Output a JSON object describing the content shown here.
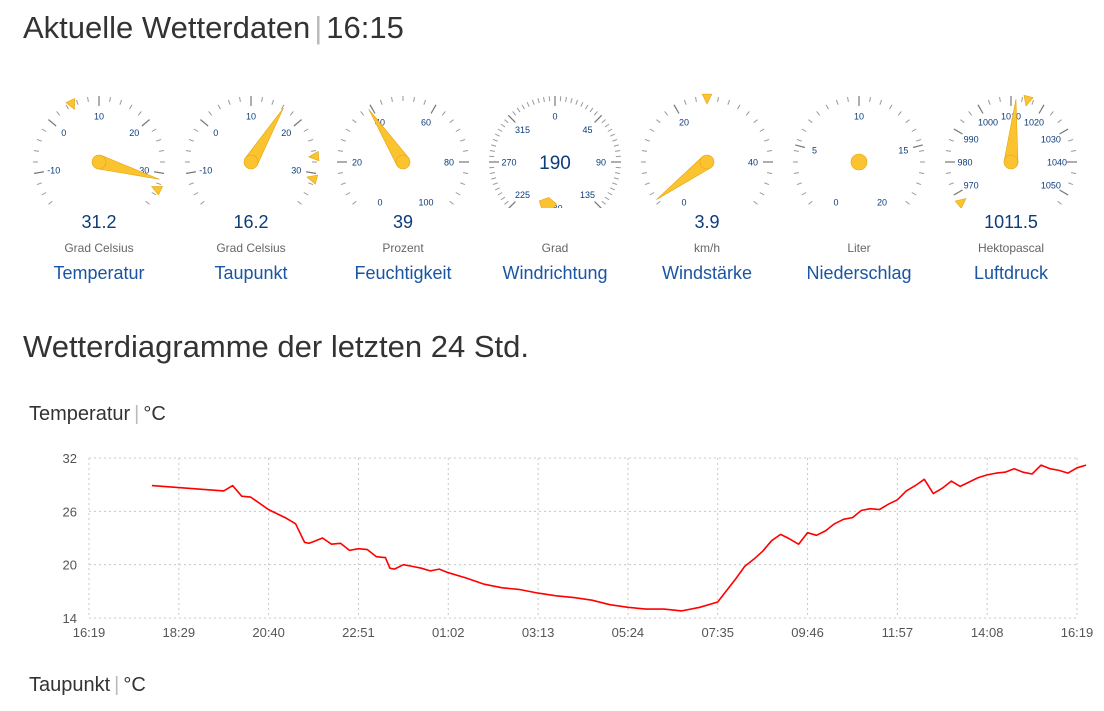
{
  "header": {
    "title": "Aktuelle Wetterdaten",
    "time": "16:15"
  },
  "colors": {
    "needle": "#fcc331",
    "needle_stroke": "#e2a40b",
    "value_text": "#0c3c7a",
    "link": "#1a55a3",
    "line": "#ff0000",
    "grid": "#c8c8c8"
  },
  "gauges": [
    {
      "id": "temperatur",
      "value": 31.2,
      "display": "31.2",
      "unit": "Grad Celsius",
      "label": "Temperatur",
      "min": -20,
      "max": 40,
      "labels": [
        "-10",
        "0",
        "10",
        "20",
        "30"
      ],
      "markers": [
        {
          "at": "low",
          "value": 5
        },
        {
          "at": "high",
          "value": 33
        }
      ]
    },
    {
      "id": "taupunkt",
      "value": 16.2,
      "display": "16.2",
      "unit": "Grad Celsius",
      "label": "Taupunkt",
      "min": -20,
      "max": 40,
      "labels": [
        "-10",
        "0",
        "10",
        "20",
        "30"
      ],
      "markers": [
        {
          "value": 27
        },
        {
          "value": 31
        }
      ]
    },
    {
      "id": "feuchtigkeit",
      "value": 39,
      "display": "39",
      "unit": "Prozent",
      "label": "Feuchtigkeit",
      "min": 0,
      "max": 100,
      "labels": [
        "0",
        "20",
        "40",
        "60",
        "80",
        "100"
      ],
      "markers": [
        {
          "value": 98
        },
        {
          "value": 102
        }
      ]
    },
    {
      "id": "windrichtung",
      "value": 190,
      "display": "190",
      "unit": "Grad",
      "label": "Windrichtung",
      "min": 0,
      "max": 360,
      "labels": [
        "0",
        "45",
        "90",
        "135",
        "180",
        "225",
        "270",
        "315"
      ]
    },
    {
      "id": "windstaerke",
      "value": 3.9,
      "display": "3.9",
      "unit": "km/h",
      "label": "Windstärke",
      "min": 0,
      "max": 50,
      "labels": [
        "0",
        "20",
        "40"
      ],
      "markers": [
        {
          "value": 0
        },
        {
          "value": 25
        }
      ]
    },
    {
      "id": "niederschlag",
      "value": 0,
      "display": "",
      "unit": "Liter",
      "label": "Niederschlag",
      "min": 0,
      "max": 20,
      "labels": [
        "0",
        "5",
        "10",
        "15",
        "20"
      ]
    },
    {
      "id": "luftdruck",
      "value": 1011.5,
      "display": "1011.5",
      "unit": "Hektopascal",
      "label": "Luftdruck",
      "min": 960,
      "max": 1060,
      "labels": [
        "970",
        "980",
        "990",
        "1000",
        "1010",
        "1020",
        "1030",
        "1040",
        "1050"
      ],
      "markers": [
        {
          "value": 967
        },
        {
          "value": 1015
        }
      ]
    }
  ],
  "section2": {
    "title": "Wetterdiagramme der letzten 24 Std."
  },
  "charts": [
    {
      "name": "Temperatur",
      "unit": "°C"
    },
    {
      "name": "Taupunkt",
      "unit": "°C"
    }
  ],
  "chart_data": {
    "type": "line",
    "title": "Temperatur",
    "ylabel": "°C",
    "ylim": [
      14,
      32
    ],
    "yticks": [
      14,
      20,
      26,
      32
    ],
    "xticks": [
      "16:19",
      "18:29",
      "20:40",
      "22:51",
      "01:02",
      "03:13",
      "05:24",
      "07:35",
      "09:46",
      "11:57",
      "14:08",
      "16:19"
    ],
    "grid": true,
    "series": [
      {
        "color": "#ff0000",
        "x": [
          0.7,
          1.5,
          1.6,
          1.7,
          1.8,
          2.0,
          2.2,
          2.3,
          2.4,
          2.45,
          2.5,
          2.6,
          2.7,
          2.8,
          2.9,
          3.0,
          3.1,
          3.2,
          3.3,
          3.35,
          3.4,
          3.5,
          3.6,
          3.7,
          3.8,
          3.9,
          4.0,
          4.2,
          4.4,
          4.6,
          4.8,
          5.0,
          5.2,
          5.4,
          5.6,
          5.8,
          6.0,
          6.2,
          6.4,
          6.6,
          6.8,
          7.0,
          7.2,
          7.3,
          7.4,
          7.5,
          7.6,
          7.7,
          7.8,
          7.9,
          8.0,
          8.1,
          8.2,
          8.3,
          8.4,
          8.5,
          8.6,
          8.7,
          8.8,
          8.9,
          9.0,
          9.1,
          9.2,
          9.3,
          9.4,
          9.5,
          9.6,
          9.7,
          9.8,
          9.9,
          10.0,
          10.1,
          10.2,
          10.3,
          10.4,
          10.5,
          10.6,
          10.7,
          10.8,
          10.9,
          11.0,
          11.1
        ],
        "y": [
          28.9,
          28.3,
          28.9,
          27.7,
          27.6,
          26.2,
          25.2,
          24.6,
          22.5,
          22.4,
          22.6,
          23.0,
          22.3,
          22.4,
          21.6,
          21.8,
          21.7,
          20.9,
          20.8,
          19.6,
          19.5,
          20.0,
          19.8,
          19.6,
          19.3,
          19.5,
          19.1,
          18.5,
          17.8,
          17.4,
          17.2,
          16.8,
          16.5,
          16.3,
          16.0,
          15.5,
          15.2,
          15.0,
          15.0,
          14.8,
          15.2,
          15.8,
          18.4,
          19.8,
          20.6,
          21.5,
          22.7,
          23.4,
          22.9,
          22.3,
          23.6,
          23.3,
          23.8,
          24.6,
          25.1,
          25.3,
          26.1,
          26.3,
          26.2,
          26.8,
          27.3,
          28.3,
          28.9,
          29.6,
          28.0,
          28.6,
          29.4,
          28.8,
          29.3,
          29.8,
          30.1,
          30.3,
          30.4,
          30.8,
          30.4,
          30.2,
          31.2,
          30.8,
          30.6,
          30.3,
          30.9,
          31.2
        ]
      }
    ]
  }
}
